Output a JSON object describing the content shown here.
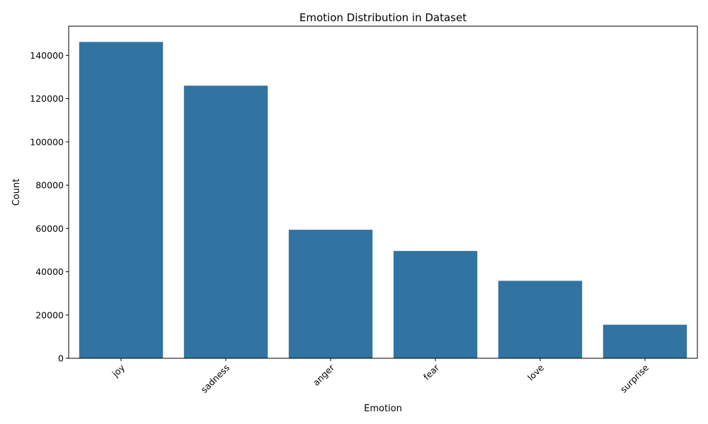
{
  "chart_data": {
    "type": "bar",
    "title": "Emotion Distribution in Dataset",
    "xlabel": "Emotion",
    "ylabel": "Count",
    "categories": [
      "joy",
      "sadness",
      "anger",
      "fear",
      "love",
      "surprise"
    ],
    "values": [
      146200,
      126000,
      59400,
      49600,
      35800,
      15500
    ],
    "ylim": [
      0,
      153500
    ],
    "yticks": [
      0,
      20000,
      40000,
      60000,
      80000,
      100000,
      120000,
      140000
    ],
    "ytick_labels": [
      "0",
      "20000",
      "40000",
      "60000",
      "80000",
      "100000",
      "120000",
      "140000"
    ],
    "x_tick_rotation_deg": 45,
    "bar_color": "#3274a1",
    "grid": false,
    "legend": false
  }
}
